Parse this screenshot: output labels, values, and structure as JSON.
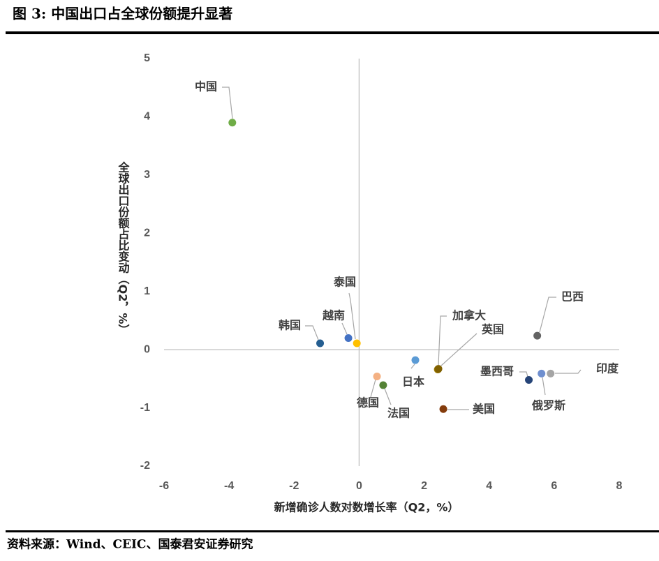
{
  "chart_data": {
    "type": "scatter",
    "title": "图 3:  中国出口占全球份额提升显著",
    "source": "资料来源：Wind、CEIC、国泰君安证券研究",
    "x_label": "新增确诊人数对数增长率（Q2，%）",
    "y_label": "全球出口份额占比变动（Q2，%）",
    "xlim": [
      -6,
      8
    ],
    "xticks": [
      -6,
      -4,
      -2,
      0,
      2,
      4,
      6,
      8
    ],
    "ylim": [
      -2,
      5
    ],
    "yticks": [
      -2,
      -1,
      0,
      1,
      2,
      3,
      4,
      5
    ],
    "points": [
      {
        "label": "中国",
        "x": -3.9,
        "y": 3.9,
        "color": "#70ad47"
      },
      {
        "label": "韩国",
        "x": -1.2,
        "y": 0.11,
        "color": "#255e91"
      },
      {
        "label": "越南",
        "x": -0.33,
        "y": 0.2,
        "color": "#4472c4"
      },
      {
        "label": "泰国",
        "x": -0.07,
        "y": 0.11,
        "color": "#ffc000"
      },
      {
        "label": "日本",
        "x": 1.73,
        "y": -0.18,
        "color": "#5b9bd5"
      },
      {
        "label": "德国",
        "x": 0.55,
        "y": -0.46,
        "color": "#f4b183"
      },
      {
        "label": "法国",
        "x": 0.74,
        "y": -0.61,
        "color": "#548235"
      },
      {
        "label": "加拿大",
        "x": 2.42,
        "y": -0.34,
        "color": "#9e7b00"
      },
      {
        "label": "英国",
        "x": 2.44,
        "y": -0.33,
        "color": "#806000"
      },
      {
        "label": "美国",
        "x": 2.59,
        "y": -1.02,
        "color": "#843c0c"
      },
      {
        "label": "巴西",
        "x": 5.48,
        "y": 0.24,
        "color": "#636363"
      },
      {
        "label": "墨西哥",
        "x": 5.22,
        "y": -0.52,
        "color": "#264478"
      },
      {
        "label": "俄罗斯",
        "x": 5.61,
        "y": -0.41,
        "color": "#6f8fcf"
      },
      {
        "label": "印度",
        "x": 5.89,
        "y": -0.41,
        "color": "#a5a5a5"
      }
    ]
  }
}
